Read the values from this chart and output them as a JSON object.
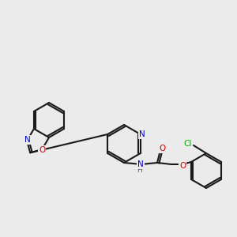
{
  "bg_color": "#ebebeb",
  "bond_color": "#1a1a1a",
  "bond_width": 1.5,
  "atom_colors": {
    "N": "#0000cc",
    "O": "#cc0000",
    "Cl": "#00aa00",
    "H": "#555577",
    "C": "#1a1a1a"
  },
  "font_size": 7.5
}
